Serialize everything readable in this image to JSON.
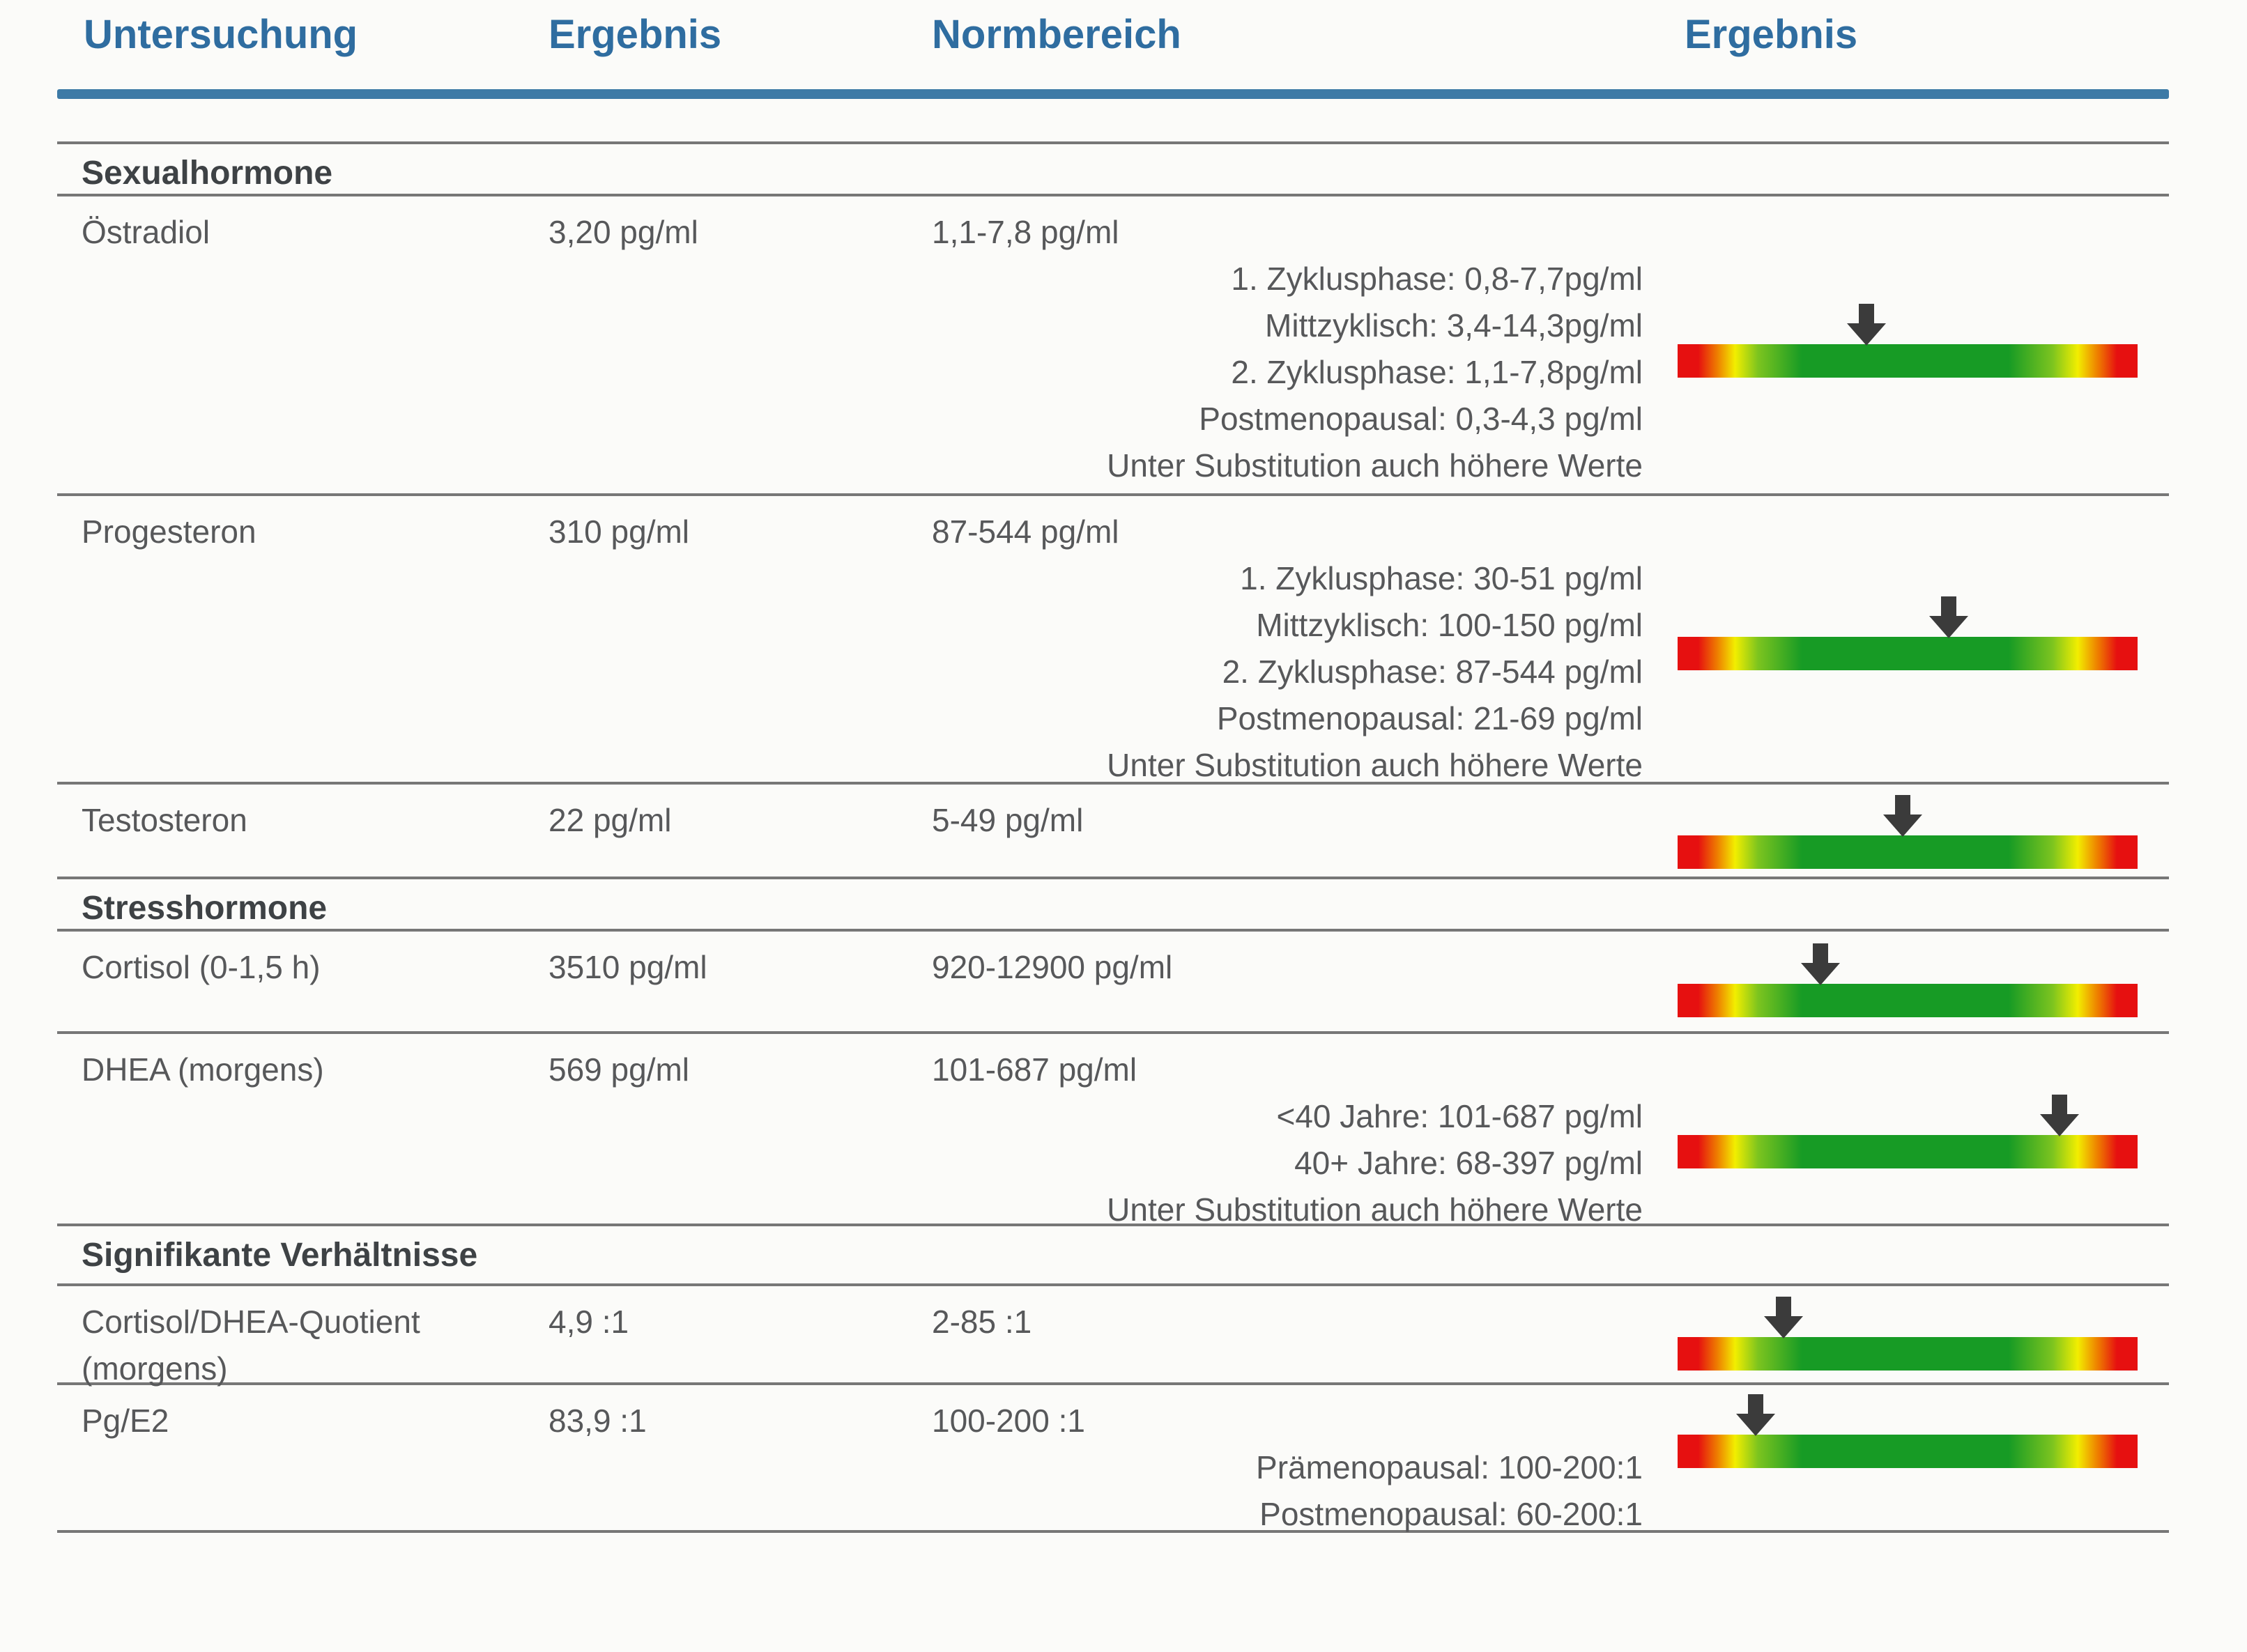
{
  "header": {
    "col_untersuchung": "Untersuchung",
    "col_ergebnis": "Ergebnis",
    "col_normbereich": "Normbereich",
    "col_ergebnis2": "Ergebnis"
  },
  "sections": [
    {
      "title": "Sexualhormone"
    },
    {
      "title": "Stresshormone"
    },
    {
      "title": "Signifikante Verhältnisse"
    }
  ],
  "rows": [
    {
      "name": "Östradiol",
      "result": "3,20 pg/ml",
      "norm": "1,1-7,8 pg/ml",
      "norm_details": [
        "1. Zyklusphase: 0,8-7,7pg/ml",
        "Mittzyklisch: 3,4-14,3pg/ml",
        "2. Zyklusphase: 1,1-7,8pg/ml",
        "Postmenopausal: 0,3-4,3 pg/ml",
        "Unter Substitution auch höhere Werte"
      ],
      "arrow_percent": 41
    },
    {
      "name": "Progesteron",
      "result": "310 pg/ml",
      "norm": "87-544 pg/ml",
      "norm_details": [
        "1. Zyklusphase: 30-51 pg/ml",
        "Mittzyklisch: 100-150 pg/ml",
        "2. Zyklusphase: 87-544 pg/ml",
        "Postmenopausal: 21-69 pg/ml",
        "Unter Substitution auch höhere Werte"
      ],
      "arrow_percent": 59
    },
    {
      "name": "Testosteron",
      "result": "22 pg/ml",
      "norm": "5-49 pg/ml",
      "norm_details": [],
      "arrow_percent": 49
    },
    {
      "name": "Cortisol (0-1,5 h)",
      "result": "3510 pg/ml",
      "norm": "920-12900 pg/ml",
      "norm_details": [],
      "arrow_percent": 31
    },
    {
      "name": "DHEA (morgens)",
      "result": "569 pg/ml",
      "norm": "101-687 pg/ml",
      "norm_details": [
        "<40 Jahre: 101-687 pg/ml",
        "40+ Jahre: 68-397 pg/ml",
        "Unter Substitution auch höhere Werte"
      ],
      "arrow_percent": 83
    },
    {
      "name": "Cortisol/DHEA-Quotient",
      "name2": "(morgens)",
      "result": "4,9 :1",
      "norm": "2-85 :1",
      "norm_details": [],
      "arrow_percent": 23
    },
    {
      "name": "Pg/E2",
      "result": "83,9 :1",
      "norm": "100-200 :1",
      "norm_details": [
        "Prämenopausal: 100-200:1",
        "Postmenopausal: 60-200:1"
      ],
      "arrow_percent": 17
    }
  ],
  "colors": {
    "header_blue": "#2f6da0",
    "header_rule_blue": "#3d7aa6",
    "body_text": "#57585a",
    "section_text": "#3e4245",
    "row_line": "#777777",
    "arrow": "#3b3b3b",
    "scale_gradient": [
      "#e61010",
      "#ee7a00",
      "#f2ee00",
      "#7cc41f",
      "#179b25",
      "#7cc41f",
      "#f2ee00",
      "#ee7a00",
      "#e61010"
    ]
  }
}
